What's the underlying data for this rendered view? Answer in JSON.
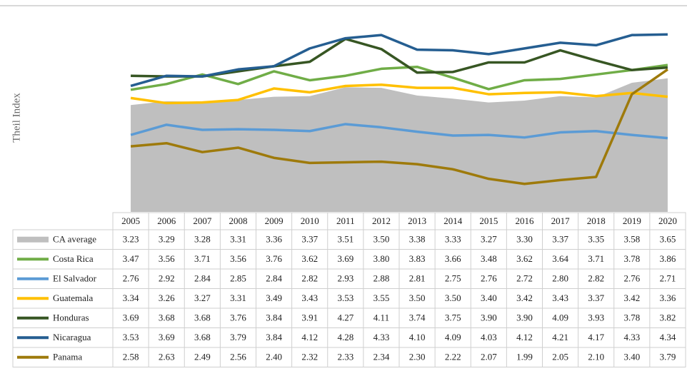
{
  "chart_data": {
    "type": "line",
    "y_label": "Theil Index",
    "categories": [
      "2005",
      "2006",
      "2007",
      "2008",
      "2009",
      "2010",
      "2011",
      "2012",
      "2013",
      "2014",
      "2015",
      "2016",
      "2017",
      "2018",
      "2019",
      "2020"
    ],
    "ylim": [
      1.55,
      4.5
    ],
    "series": [
      {
        "name": "CA average",
        "type": "area",
        "color": "#bfbfbf",
        "values": [
          3.23,
          3.29,
          3.28,
          3.31,
          3.36,
          3.37,
          3.51,
          3.5,
          3.38,
          3.33,
          3.27,
          3.3,
          3.37,
          3.35,
          3.58,
          3.65
        ],
        "value_labels": [
          "3.23",
          "3.29",
          "3.28",
          "3.31",
          "3.36",
          "3.37",
          "3.51",
          "3.50",
          "3.38",
          "3.33",
          "3.27",
          "3.30",
          "3.37",
          "3.35",
          "3.58",
          "3.65"
        ]
      },
      {
        "name": "Costa Rica",
        "type": "line",
        "color": "#70ad47",
        "values": [
          3.47,
          3.56,
          3.71,
          3.56,
          3.76,
          3.62,
          3.69,
          3.8,
          3.83,
          3.66,
          3.48,
          3.62,
          3.64,
          3.71,
          3.78,
          3.86
        ],
        "value_labels": [
          "3.47",
          "3.56",
          "3.71",
          "3.56",
          "3.76",
          "3.62",
          "3.69",
          "3.80",
          "3.83",
          "3.66",
          "3.48",
          "3.62",
          "3.64",
          "3.71",
          "3.78",
          "3.86"
        ]
      },
      {
        "name": "El Salvador",
        "type": "line",
        "color": "#5b9bd5",
        "values": [
          2.76,
          2.92,
          2.84,
          2.85,
          2.84,
          2.82,
          2.93,
          2.88,
          2.81,
          2.75,
          2.76,
          2.72,
          2.8,
          2.82,
          2.76,
          2.71
        ],
        "value_labels": [
          "2.76",
          "2.92",
          "2.84",
          "2.85",
          "2.84",
          "2.82",
          "2.93",
          "2.88",
          "2.81",
          "2.75",
          "2.76",
          "2.72",
          "2.80",
          "2.82",
          "2.76",
          "2.71"
        ]
      },
      {
        "name": "Guatemala",
        "type": "line",
        "color": "#ffc000",
        "values": [
          3.34,
          3.26,
          3.27,
          3.31,
          3.49,
          3.43,
          3.53,
          3.55,
          3.5,
          3.5,
          3.4,
          3.42,
          3.43,
          3.37,
          3.42,
          3.36
        ],
        "value_labels": [
          "3.34",
          "3.26",
          "3.27",
          "3.31",
          "3.49",
          "3.43",
          "3.53",
          "3.55",
          "3.50",
          "3.50",
          "3.40",
          "3.42",
          "3.43",
          "3.37",
          "3.42",
          "3.36"
        ]
      },
      {
        "name": "Honduras",
        "type": "line",
        "color": "#375623",
        "values": [
          3.69,
          3.68,
          3.68,
          3.76,
          3.84,
          3.91,
          4.27,
          4.11,
          3.74,
          3.75,
          3.9,
          3.9,
          4.09,
          3.93,
          3.78,
          3.82
        ],
        "value_labels": [
          "3.69",
          "3.68",
          "3.68",
          "3.76",
          "3.84",
          "3.91",
          "4.27",
          "4.11",
          "3.74",
          "3.75",
          "3.90",
          "3.90",
          "4.09",
          "3.93",
          "3.78",
          "3.82"
        ]
      },
      {
        "name": "Nicaragua",
        "type": "line",
        "color": "#255e91",
        "values": [
          3.53,
          3.69,
          3.68,
          3.79,
          3.84,
          4.12,
          4.28,
          4.33,
          4.1,
          4.09,
          4.03,
          4.12,
          4.21,
          4.17,
          4.33,
          4.34
        ],
        "value_labels": [
          "3.53",
          "3.69",
          "3.68",
          "3.79",
          "3.84",
          "4.12",
          "4.28",
          "4.33",
          "4.10",
          "4.09",
          "4.03",
          "4.12",
          "4.21",
          "4.17",
          "4.33",
          "4.34"
        ]
      },
      {
        "name": "Panama",
        "type": "line",
        "color": "#9e7a0b",
        "values": [
          2.58,
          2.63,
          2.49,
          2.56,
          2.4,
          2.32,
          2.33,
          2.34,
          2.3,
          2.22,
          2.07,
          1.99,
          2.05,
          2.1,
          3.4,
          3.79
        ],
        "value_labels": [
          "2.58",
          "2.63",
          "2.49",
          "2.56",
          "2.40",
          "2.32",
          "2.33",
          "2.34",
          "2.30",
          "2.22",
          "2.07",
          "1.99",
          "2.05",
          "2.10",
          "3.40",
          "3.79"
        ]
      }
    ]
  }
}
